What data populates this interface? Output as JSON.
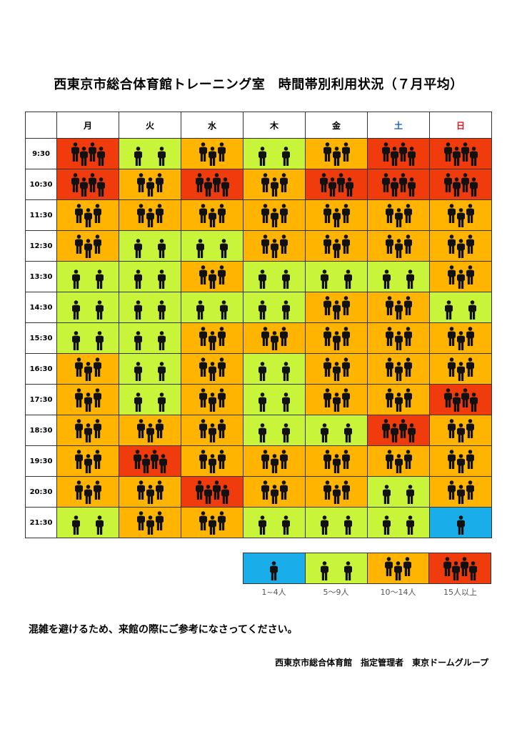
{
  "title": "西東京市総合体育館トレーニング室　時間帯別利用状況（７月平均）",
  "corner": "",
  "days": [
    {
      "label": "月",
      "color": "#000000"
    },
    {
      "label": "火",
      "color": "#000000"
    },
    {
      "label": "水",
      "color": "#000000"
    },
    {
      "label": "木",
      "color": "#000000"
    },
    {
      "label": "金",
      "color": "#000000"
    },
    {
      "label": "土",
      "color": "#1f5fd0"
    },
    {
      "label": "日",
      "color": "#e0141e"
    }
  ],
  "levels": {
    "1": {
      "label": "1~4人",
      "color": "#19aeea",
      "people": 1
    },
    "2": {
      "label": "5〜9人",
      "color": "#c8f53a",
      "people": 2
    },
    "3": {
      "label": "10〜14人",
      "color": "#ffb400",
      "people": 3
    },
    "4": {
      "label": "15人以上",
      "color": "#f03c0c",
      "people": 4
    }
  },
  "rows": [
    {
      "time": "9:30",
      "levels": [
        4,
        2,
        3,
        2,
        3,
        4,
        4
      ]
    },
    {
      "time": "10:30",
      "levels": [
        4,
        3,
        4,
        3,
        4,
        4,
        4
      ]
    },
    {
      "time": "11:30",
      "levels": [
        3,
        3,
        3,
        3,
        3,
        3,
        3
      ]
    },
    {
      "time": "12:30",
      "levels": [
        3,
        2,
        2,
        3,
        3,
        3,
        3
      ]
    },
    {
      "time": "13:30",
      "levels": [
        2,
        2,
        3,
        2,
        2,
        2,
        3
      ]
    },
    {
      "time": "14:30",
      "levels": [
        2,
        2,
        2,
        2,
        3,
        3,
        2
      ]
    },
    {
      "time": "15:30",
      "levels": [
        2,
        2,
        3,
        3,
        3,
        3,
        3
      ]
    },
    {
      "time": "16:30",
      "levels": [
        3,
        2,
        3,
        2,
        3,
        3,
        3
      ]
    },
    {
      "time": "17:30",
      "levels": [
        3,
        2,
        3,
        2,
        3,
        3,
        4
      ]
    },
    {
      "time": "18:30",
      "levels": [
        3,
        3,
        3,
        2,
        2,
        4,
        3
      ]
    },
    {
      "time": "19:30",
      "levels": [
        3,
        4,
        3,
        3,
        3,
        3,
        3
      ]
    },
    {
      "time": "20:30",
      "levels": [
        3,
        3,
        4,
        3,
        3,
        2,
        3
      ]
    },
    {
      "time": "21:30",
      "levels": [
        2,
        3,
        3,
        2,
        2,
        2,
        1
      ]
    }
  ],
  "legend_order": [
    "1",
    "2",
    "3",
    "4"
  ],
  "note": "混雑を避けるため、来館の際にご参考になさってください。",
  "footer": "西東京市総合体育館　指定管理者　東京ドームグループ"
}
